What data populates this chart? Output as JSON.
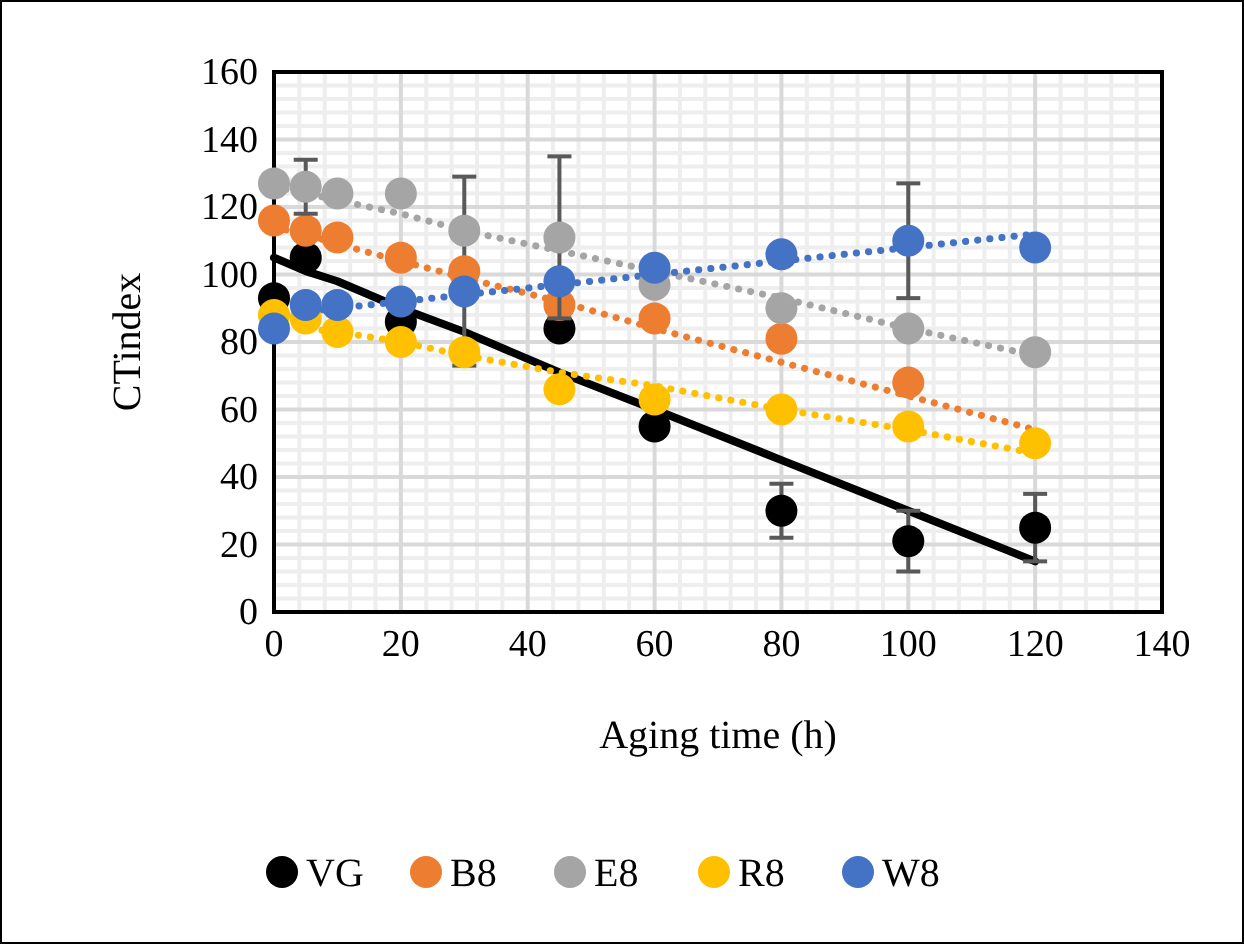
{
  "chart_data": {
    "type": "scatter",
    "xlabel": "Aging time (h)",
    "ylabel": "CTindex",
    "x": [
      0,
      5,
      10,
      20,
      30,
      45,
      60,
      80,
      100,
      120
    ],
    "xlim": [
      0,
      140
    ],
    "xticks": [
      0,
      20,
      40,
      60,
      80,
      100,
      120,
      140
    ],
    "ylim": [
      0,
      160
    ],
    "yticks": [
      0,
      20,
      40,
      60,
      80,
      100,
      120,
      140,
      160
    ],
    "grid": true,
    "legend": "bottom",
    "marker": "circle",
    "series": [
      {
        "name": "VG",
        "color": "#000000",
        "values": [
          93,
          105,
          null,
          86,
          null,
          84,
          55,
          30,
          21,
          25
        ],
        "errors": [
          null,
          null,
          null,
          null,
          null,
          null,
          null,
          8,
          9,
          10
        ]
      },
      {
        "name": "B8",
        "color": "#ed7d31",
        "values": [
          116,
          113,
          111,
          105,
          101,
          91,
          87,
          81,
          68,
          null
        ],
        "errors": [
          null,
          null,
          null,
          null,
          28,
          null,
          null,
          null,
          null,
          null
        ]
      },
      {
        "name": "E8",
        "color": "#a5a5a5",
        "values": [
          127,
          126,
          124,
          124,
          113,
          111,
          97,
          90,
          84,
          77
        ],
        "errors": [
          null,
          8,
          null,
          null,
          null,
          24,
          null,
          null,
          null,
          null
        ]
      },
      {
        "name": "R8",
        "color": "#ffc000",
        "values": [
          88,
          87,
          83,
          80,
          77,
          66,
          63,
          60,
          55,
          50
        ]
      },
      {
        "name": "W8",
        "color": "#4472c4",
        "values": [
          84,
          91,
          91,
          92,
          95,
          98,
          102,
          106,
          110,
          108
        ],
        "errors": [
          null,
          null,
          null,
          null,
          null,
          null,
          null,
          null,
          17,
          null
        ]
      },
      {
        "type": "line",
        "color": "#000000",
        "values": [
          105,
          101,
          98,
          90,
          83,
          71,
          60,
          45,
          30,
          15
        ],
        "line_style": "solid",
        "marker": "none"
      },
      {
        "type": "line",
        "color": "#ed7d31",
        "values": [
          114,
          112,
          109,
          104,
          99,
          92,
          84,
          74,
          64,
          54
        ],
        "line_style": "dotted",
        "marker": "none"
      },
      {
        "type": "line",
        "color": "#a5a5a5",
        "values": [
          126,
          124,
          122,
          118,
          113,
          107,
          101,
          93,
          84,
          76
        ],
        "line_style": "dotted",
        "marker": "none"
      },
      {
        "type": "line",
        "color": "#ffc000",
        "values": [
          86,
          84,
          83,
          80,
          76,
          71,
          67,
          60,
          54,
          47
        ],
        "line_style": "dotted",
        "marker": "none"
      },
      {
        "type": "line",
        "color": "#4472c4",
        "values": [
          88,
          89,
          90,
          92,
          94,
          97,
          100,
          104,
          108,
          112
        ],
        "line_style": "dotted",
        "marker": "none"
      }
    ]
  }
}
